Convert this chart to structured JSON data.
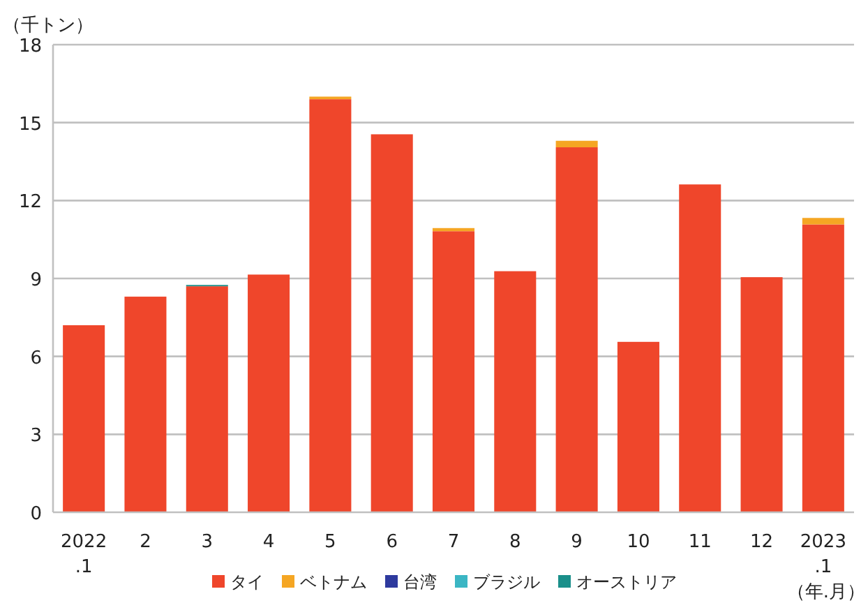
{
  "chart_data": {
    "type": "bar",
    "stacked": true,
    "ylabel": "（千トン）",
    "annotations": [
      "（年.月）"
    ],
    "categories": [
      "2022\n.1",
      "2",
      "3",
      "4",
      "5",
      "6",
      "7",
      "8",
      "9",
      "10",
      "11",
      "12",
      "2023\n.1"
    ],
    "ylim": [
      0,
      18
    ],
    "yticks": [
      0,
      3,
      6,
      9,
      12,
      15,
      18
    ],
    "grid": "y",
    "legend": "bottom",
    "series": [
      {
        "name": "タイ",
        "color": "#ef462b",
        "values": [
          7.2,
          8.3,
          8.7,
          9.15,
          15.9,
          14.55,
          10.82,
          9.28,
          14.05,
          6.56,
          12.62,
          9.05,
          11.08
        ]
      },
      {
        "name": "ベトナム",
        "color": "#f5a623",
        "values": [
          0,
          0,
          0,
          0,
          0.1,
          0,
          0.12,
          0,
          0.25,
          0,
          0,
          0,
          0.25
        ]
      },
      {
        "name": "台湾",
        "color": "#2e3a9e",
        "values": [
          0,
          0,
          0,
          0,
          0,
          0,
          0,
          0,
          0,
          0,
          0,
          0,
          0
        ]
      },
      {
        "name": "ブラジル",
        "color": "#3bb6c4",
        "values": [
          0,
          0,
          0,
          0,
          0,
          0,
          0,
          0,
          0,
          0,
          0,
          0,
          0
        ]
      },
      {
        "name": "オーストリア",
        "color": "#1a8f8a",
        "values": [
          0,
          0,
          0.05,
          0,
          0,
          0,
          0,
          0,
          0,
          0,
          0,
          0,
          0
        ]
      }
    ]
  }
}
